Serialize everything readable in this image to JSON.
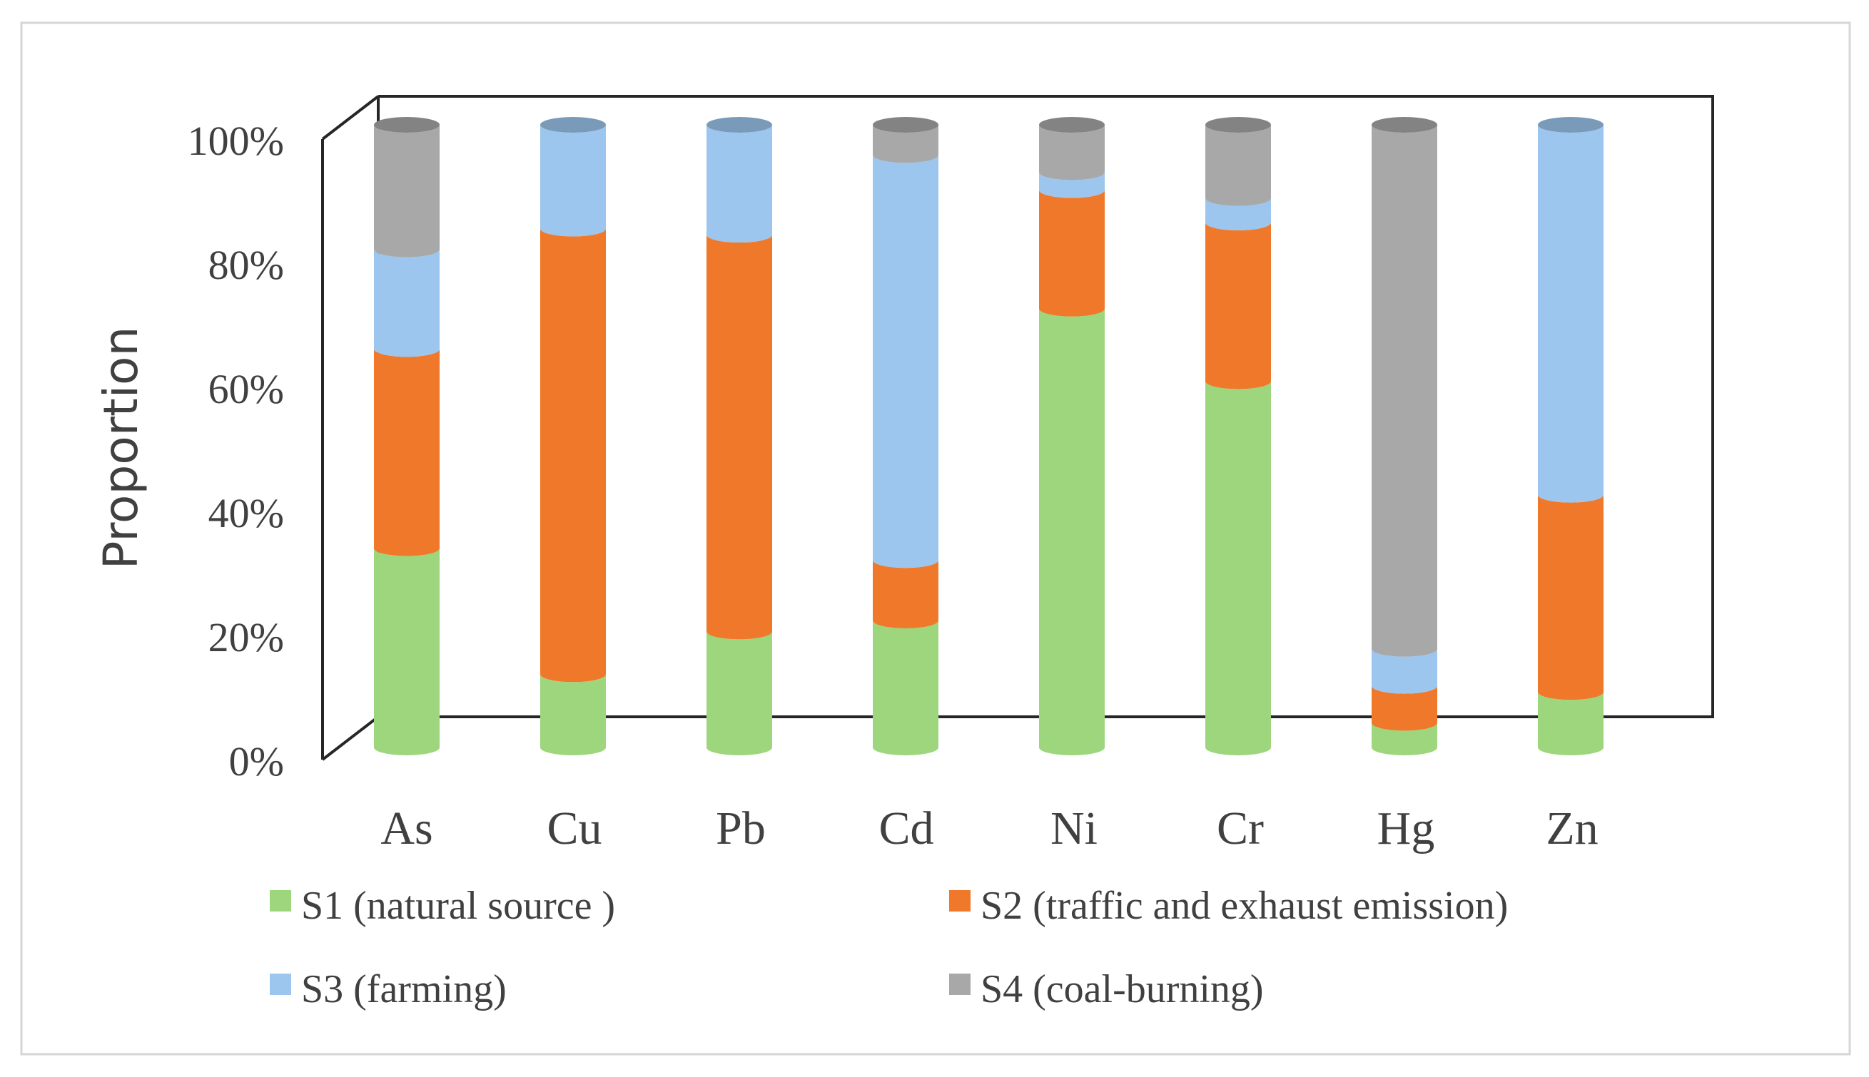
{
  "chart_data": {
    "type": "bar",
    "stacked": "percent",
    "style": "3d-cylinder",
    "title": "",
    "xlabel": "",
    "ylabel": "Proportion",
    "ylim": [
      0,
      100
    ],
    "yticks": [
      "0%",
      "20%",
      "40%",
      "60%",
      "80%",
      "100%"
    ],
    "categories": [
      "As",
      "Cu",
      "Pb",
      "Cd",
      "Ni",
      "Cr",
      "Hg",
      "Zn"
    ],
    "series": [
      {
        "name": "S1 (natural source )",
        "color": "#9ed67e",
        "values": [
          32,
          12,
          19,
          21,
          74,
          60,
          4,
          9
        ]
      },
      {
        "name": "S2 (traffic and exhaust emission)",
        "color": "#f0782a",
        "values": [
          32,
          73,
          65,
          10,
          20,
          26,
          6,
          32
        ]
      },
      {
        "name": "S3 (farming)",
        "color": "#9cc6ee",
        "values": [
          16,
          17,
          18,
          67,
          3,
          4,
          6,
          60
        ]
      },
      {
        "name": "S4 (coal-burning)",
        "color": "#a8a8a8",
        "values": [
          20,
          0,
          0,
          5,
          8,
          12,
          85,
          0
        ]
      }
    ],
    "legend_position": "bottom"
  }
}
